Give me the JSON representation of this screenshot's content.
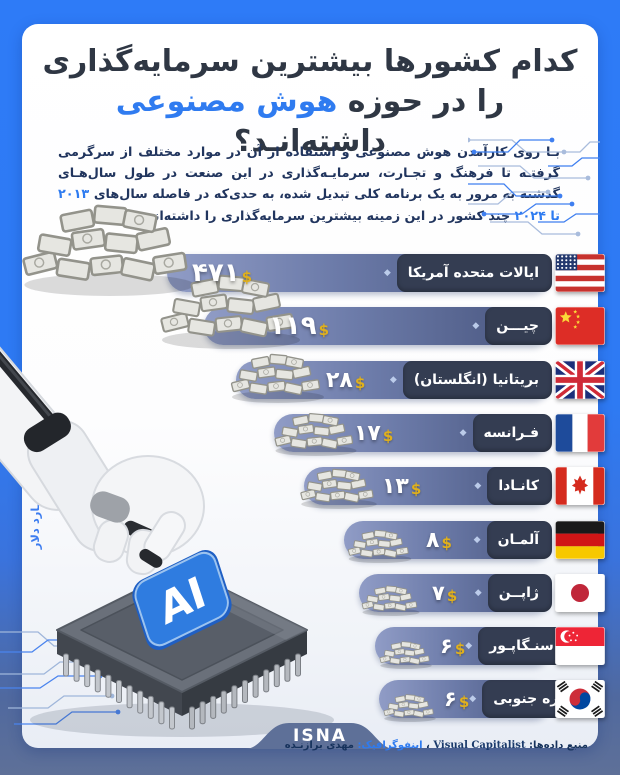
{
  "header": {
    "title_line1": "کدام کشورها بیشترین سرمایه‌گذاری",
    "title_line2_pre": "را در حوزه ",
    "title_line2_highlight": "هوش مصنوعی",
    "title_line2_post": " داشته‌انـد؟"
  },
  "intro": {
    "part1": "بـا روی کارآمدن هوش مصنوعی و استفاده از آن در موارد مختلف از سرگرمی گرفتـه تا فرهنگ و تجـارت، سرمایـه‌گذاری در این صنعت در طول سال‌هـای گذشته به مرور به یک برنامه کلی تبدیل شده، به حدی‌که در فاصله سال‌های ",
    "highlight_years": "۲۰۱۳ تا ۲۰۲۴",
    "part2": " چند کشور در این زمینه بیشترین سرمایه‌گذاری را داشته‌اند"
  },
  "axis_note": "اعـداد بـه میلیـارد دلار",
  "ai_button_label": "AI",
  "currency_symbol": "$",
  "icons": {
    "diamond": "◆"
  },
  "rows": [
    {
      "name": "ایالات متحده آمریکا",
      "value_fa": "۴۷۱",
      "value": 471,
      "flag": "us"
    },
    {
      "name": "چیـــن",
      "value_fa": "۱۱۹",
      "value": 119,
      "flag": "cn"
    },
    {
      "name": "بریتانیا (انگلستان)",
      "value_fa": "۲۸",
      "value": 28,
      "flag": "gb"
    },
    {
      "name": "فـرانسه",
      "value_fa": "۱۷",
      "value": 17,
      "flag": "fr"
    },
    {
      "name": "کانـادا",
      "value_fa": "۱۳",
      "value": 13,
      "flag": "ca"
    },
    {
      "name": "آلمـان",
      "value_fa": "۸",
      "value": 8,
      "flag": "de"
    },
    {
      "name": "ژاپــن",
      "value_fa": "۷",
      "value": 7,
      "flag": "jp"
    },
    {
      "name": "سنـگاپـور",
      "value_fa": "۶",
      "value": 6,
      "flag": "sg"
    },
    {
      "name": "کره جنوبی",
      "value_fa": "۶",
      "value": 6,
      "flag": "kr"
    }
  ],
  "chart_data": {
    "type": "bar",
    "title": "کدام کشورها بیشترین سرمایه‌گذاری را در حوزه هوش مصنوعی داشته‌اند؟",
    "unit": "میلیارد دلار",
    "period": "۲۰۱۳ تا ۲۰۲۴",
    "orientation": "horizontal-rtl",
    "categories": [
      "ایالات متحده آمریکا",
      "چین",
      "بریتانیا (انگلستان)",
      "فرانسه",
      "کانادا",
      "آلمان",
      "ژاپن",
      "سنگاپور",
      "کره جنوبی"
    ],
    "values": [
      471,
      119,
      28,
      17,
      13,
      8,
      7,
      6,
      6
    ],
    "value_labels_fa": [
      "۴۷۱",
      "۱۱۹",
      "۲۸",
      "۱۷",
      "۱۳",
      "۸",
      "۷",
      "۶",
      "۶"
    ]
  },
  "footer": {
    "logo": "ISNA",
    "source_label": "منبع داده‌ها:",
    "source_value": "Visual Capitalist",
    "separator": "،",
    "infographic_label": "اینفوگرافیک:",
    "infographic_value": "مهدی برازنـده"
  },
  "colors": {
    "background_blue": "#2e7bf5",
    "accent_blue": "#2f7bf0",
    "title_dark": "#2f3744",
    "capsule_dark": "#343d52",
    "bar_gradient_left": "#909cc6",
    "bar_gradient_right": "#46537c",
    "gold_dollar": "#e0b01c",
    "slate_band": "#5e7098",
    "ai_button_blue": "#2f7ce0"
  }
}
